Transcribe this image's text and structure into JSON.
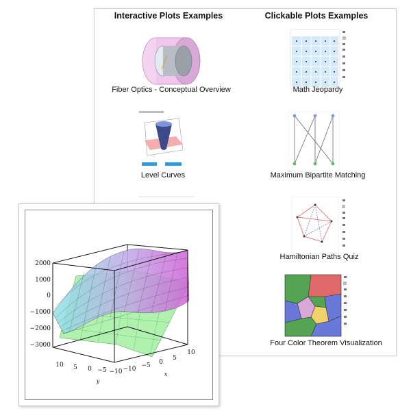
{
  "columns": {
    "left_title": "Interactive Plots Examples",
    "right_title": "Clickable Plots Examples"
  },
  "examples": {
    "fiber_optics": "Fiber Optics - Conceptual Overview",
    "level_curves": "Level Curves",
    "math_jeopardy": "Math Jeopardy",
    "bipartite": "Maximum Bipartite Matching",
    "hamiltonian": "Hamiltonian Paths Quiz",
    "four_color": "Four Color Theorem Visualization"
  },
  "surface_plot": {
    "z_ticks": [
      "2000",
      "1000",
      "0",
      "−1000",
      "−2000",
      "−3000"
    ],
    "y_ticks": [
      "10",
      "5",
      "0",
      "−5",
      "−10"
    ],
    "x_ticks": [
      "−10",
      "−5",
      "0",
      "5",
      "10"
    ],
    "y_label": "y",
    "x_label": "x"
  },
  "icons": [
    "zoom-icon",
    "pan-icon",
    "rotate-icon"
  ]
}
